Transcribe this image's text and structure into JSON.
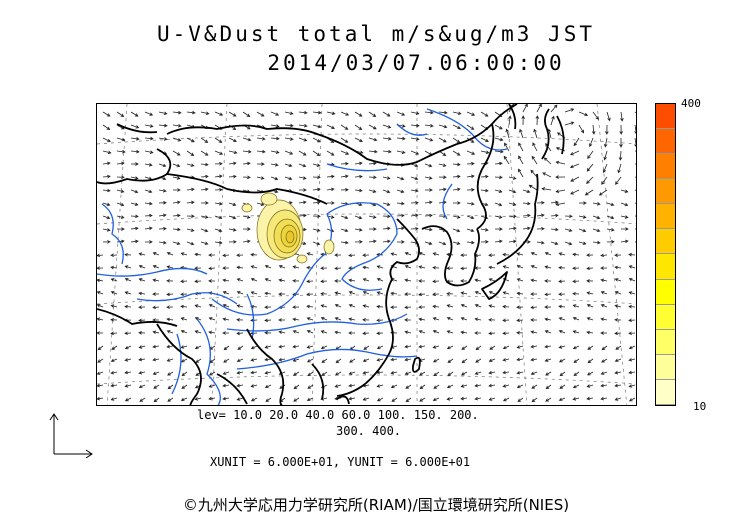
{
  "header": {
    "title": "U-V&Dust total m/s&ug/m3 JST",
    "datetime": "2014/03/07.06:00:00"
  },
  "colorbar": {
    "max_label": "400",
    "min_label": "10",
    "colors": [
      "#ffffc8",
      "#ffff99",
      "#ffff66",
      "#ffff33",
      "#ffff00",
      "#ffe600",
      "#ffcc00",
      "#ffb300",
      "#ff9900",
      "#ff8000",
      "#ff6600",
      "#ff4d00"
    ]
  },
  "contour_levels": {
    "line1": "lev= 10.0 20.0 40.0 60.0 100. 150. 200.",
    "line2": "300. 400."
  },
  "units_line": "XUNIT = 6.000E+01, YUNIT = 6.000E+01",
  "credit": "©九州大学応用力学研究所(RIAM)/国立環境研究所(NIES)",
  "map": {
    "coastline_color": "#000000",
    "river_color": "#1f5fe0",
    "dust_fill": "#fbf3a8",
    "dust_line": "#7a6a1a"
  }
}
